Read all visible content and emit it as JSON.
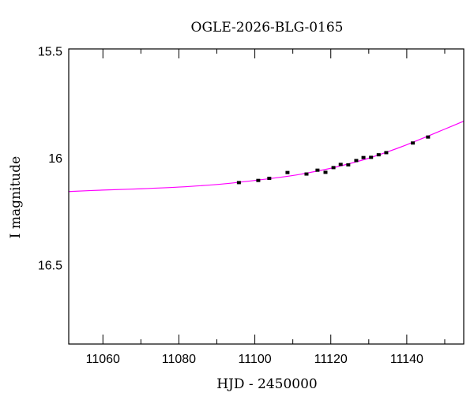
{
  "chart_data": {
    "type": "scatter",
    "title": "OGLE-2026-BLG-0165",
    "xlabel": "HJD - 2450000",
    "ylabel": "I magnitude",
    "xlim": [
      11051,
      11155
    ],
    "ylim": [
      16.87,
      15.49
    ],
    "y_inverted": true,
    "x_ticks": [
      11060,
      11080,
      11100,
      11120,
      11140
    ],
    "x_tick_labels": [
      "11060",
      "11080",
      "11100",
      "11120",
      "11140"
    ],
    "y_ticks": [
      15.5,
      16,
      16.5
    ],
    "y_tick_labels": [
      "15.5",
      "16",
      "16.5"
    ],
    "grid": false,
    "series": [
      {
        "kind": "points_with_errorbars",
        "color": "#000000",
        "x": [
          11095.8,
          11100.9,
          11103.8,
          11108.6,
          11113.6,
          11116.5,
          11118.6,
          11120.7,
          11122.6,
          11124.6,
          11126.7,
          11128.6,
          11130.6,
          11132.6,
          11134.6,
          11141.6,
          11145.6
        ],
        "y": [
          16.115,
          16.105,
          16.095,
          16.068,
          16.075,
          16.057,
          16.067,
          16.045,
          16.03,
          16.032,
          16.012,
          15.998,
          15.997,
          15.985,
          15.975,
          15.93,
          15.902
        ],
        "yerr": [
          0.007,
          0.006,
          0.006,
          0.006,
          0.006,
          0.006,
          0.006,
          0.006,
          0.006,
          0.006,
          0.006,
          0.006,
          0.006,
          0.006,
          0.006,
          0.006,
          0.006
        ]
      },
      {
        "kind": "model_curve",
        "color": "#ff00ff",
        "x": [
          11051,
          11060,
          11070,
          11080,
          11090,
          11100,
          11110,
          11115,
          11120,
          11125,
          11130,
          11135,
          11140,
          11145,
          11150,
          11155
        ],
        "y": [
          16.157,
          16.15,
          16.144,
          16.136,
          16.124,
          16.105,
          16.082,
          16.066,
          16.048,
          16.026,
          16.001,
          15.971,
          15.938,
          15.902,
          15.865,
          15.828
        ]
      }
    ]
  }
}
